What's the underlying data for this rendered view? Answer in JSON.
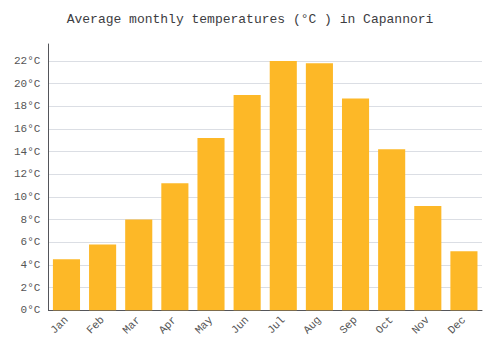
{
  "chart_data": {
    "type": "bar",
    "title": "Average monthly temperatures (°C ) in Capannori",
    "categories": [
      "Jan",
      "Feb",
      "Mar",
      "Apr",
      "May",
      "Jun",
      "Jul",
      "Aug",
      "Sep",
      "Oct",
      "Nov",
      "Dec"
    ],
    "values": [
      4.5,
      5.8,
      8.0,
      11.2,
      15.2,
      19.0,
      22.0,
      21.8,
      18.7,
      14.2,
      9.2,
      5.2
    ],
    "color": "#FDB827",
    "ylim": [
      0,
      23.5
    ],
    "yticks": [
      {
        "value": 0,
        "label": "0°C"
      },
      {
        "value": 2,
        "label": "2°C"
      },
      {
        "value": 4,
        "label": "4°C"
      },
      {
        "value": 6,
        "label": "6°C"
      },
      {
        "value": 8,
        "label": "8°C"
      },
      {
        "value": 10,
        "label": "10°C"
      },
      {
        "value": 12,
        "label": "12°C"
      },
      {
        "value": 14,
        "label": "14°C"
      },
      {
        "value": 16,
        "label": "16°C"
      },
      {
        "value": 18,
        "label": "18°C"
      },
      {
        "value": 20,
        "label": "20°C"
      },
      {
        "value": 22,
        "label": "22°C"
      }
    ],
    "grid": true
  }
}
